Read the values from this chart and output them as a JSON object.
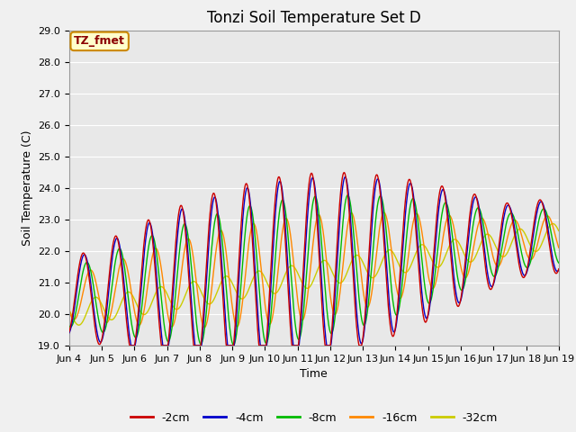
{
  "title": "Tonzi Soil Temperature Set D",
  "ylabel": "Soil Temperature (C)",
  "xlabel": "Time",
  "annotation": "TZ_fmet",
  "ylim": [
    19.0,
    29.0
  ],
  "yticks": [
    19.0,
    20.0,
    21.0,
    22.0,
    23.0,
    24.0,
    25.0,
    26.0,
    27.0,
    28.0,
    29.0
  ],
  "fig_bg_color": "#f0f0f0",
  "plot_bg_color": "#e8e8e8",
  "line_colors": {
    "-2cm": "#cc0000",
    "-4cm": "#0000cc",
    "-8cm": "#00bb00",
    "-16cm": "#ff8800",
    "-32cm": "#cccc00"
  },
  "n_days": 15,
  "samples_per_day": 96,
  "xtick_labels": [
    "Jun 4",
    "Jun 5",
    "Jun 6",
    "Jun 7",
    "Jun 8",
    "Jun 9",
    "Jun 10",
    "Jun 11",
    "Jun 12",
    "Jun 13",
    "Jun 14",
    "Jun 15",
    "Jun 16",
    "Jun 17",
    "Jun 18",
    "Jun 19"
  ],
  "title_fontsize": 12,
  "axis_fontsize": 9,
  "tick_fontsize": 8,
  "legend_fontsize": 9
}
